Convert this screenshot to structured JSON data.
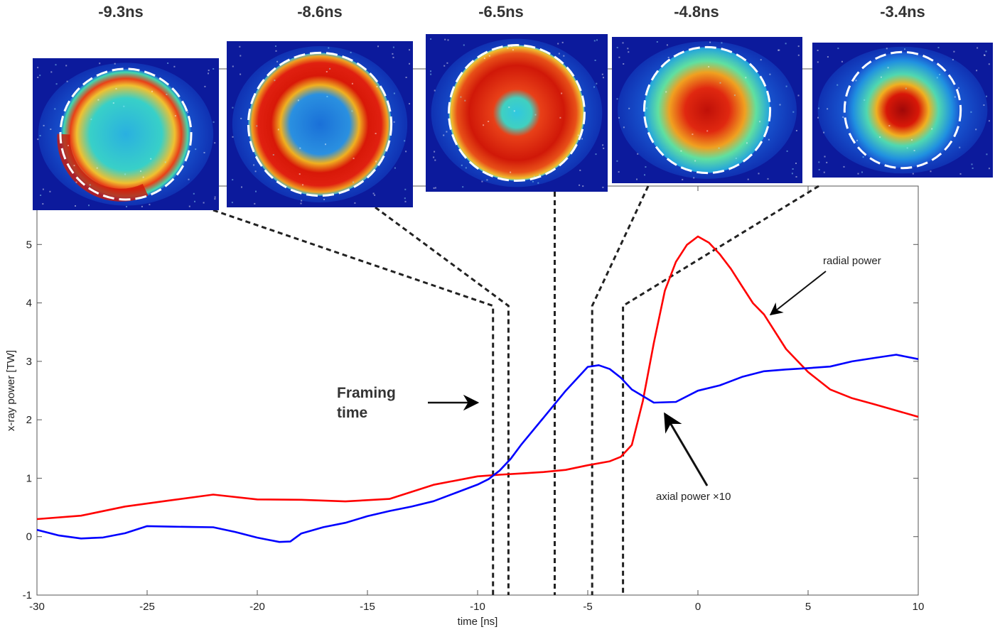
{
  "chart_data": {
    "type": "line",
    "xlabel": "time [ns]",
    "ylabel": "x-ray power [TW]",
    "xlim": [
      -30,
      10
    ],
    "ylim": [
      -1,
      6
    ],
    "xticks": [
      -30,
      -25,
      -20,
      -15,
      -10,
      -5,
      0,
      5,
      10
    ],
    "yticks": [
      -1,
      0,
      1,
      2,
      3,
      4,
      5
    ],
    "xtick_labels": [
      "-30",
      "-25",
      "-20",
      "-15",
      "-10",
      "-5",
      "0",
      "5",
      "10"
    ],
    "ytick_labels": [
      "-1",
      "0",
      "1",
      "2",
      "3",
      "4",
      "5"
    ],
    "grid": false,
    "colors": {
      "radial": "#ff0000",
      "axial": "#0000ff",
      "frame_line": "#222222"
    },
    "series": [
      {
        "name": "radial power",
        "x": [
          -30,
          -28,
          -26,
          -24,
          -22,
          -20,
          -18,
          -16,
          -14,
          -12,
          -10,
          -9,
          -8,
          -7,
          -6,
          -5,
          -4,
          -3.5,
          -3,
          -2.5,
          -2,
          -1.5,
          -1,
          -0.5,
          0,
          0.5,
          1,
          1.5,
          2,
          2.5,
          3,
          4,
          5,
          6,
          7,
          8,
          9,
          10
        ],
        "values": [
          0.3,
          0.35,
          0.5,
          0.6,
          0.7,
          0.62,
          0.62,
          0.6,
          0.65,
          0.9,
          1.05,
          1.08,
          1.1,
          1.12,
          1.15,
          1.22,
          1.28,
          1.35,
          1.55,
          2.3,
          3.3,
          4.2,
          4.7,
          5.0,
          5.15,
          5.05,
          4.85,
          4.6,
          4.3,
          4.0,
          3.8,
          3.2,
          2.8,
          2.5,
          2.35,
          2.25,
          2.15,
          2.05
        ]
      },
      {
        "name": "axial power ×10",
        "x": [
          -30,
          -29,
          -28,
          -27,
          -26,
          -25,
          -24,
          -23,
          -22,
          -21,
          -20,
          -19,
          -18.5,
          -18,
          -17,
          -16,
          -15,
          -14,
          -13,
          -12,
          -11,
          -10,
          -9.5,
          -9,
          -8.5,
          -8,
          -7,
          -6,
          -5,
          -4.5,
          -4,
          -3.5,
          -3,
          -2,
          -1,
          0,
          1,
          2,
          3,
          4,
          5,
          6,
          7,
          8,
          9,
          10
        ],
        "values": [
          0.1,
          0.0,
          -0.05,
          -0.03,
          0.05,
          0.18,
          0.18,
          0.18,
          0.18,
          0.1,
          0.0,
          -0.08,
          -0.08,
          0.05,
          0.15,
          0.22,
          0.33,
          0.42,
          0.5,
          0.6,
          0.75,
          0.9,
          1.0,
          1.15,
          1.35,
          1.6,
          2.05,
          2.5,
          2.9,
          2.92,
          2.85,
          2.7,
          2.5,
          2.28,
          2.3,
          2.5,
          2.6,
          2.75,
          2.85,
          2.88,
          2.9,
          2.92,
          3.0,
          3.05,
          3.1,
          3.02
        ]
      }
    ],
    "annotations": [
      {
        "text": "radial power",
        "x": 3.5,
        "y": 4.7,
        "arrow_to_x": 3.3,
        "arrow_to_y": 3.8
      },
      {
        "text": "axial power ×10",
        "x": 1.5,
        "y": 0.7,
        "arrow_to_x": -1.5,
        "arrow_to_y": 2.1
      },
      {
        "text": "Framing time",
        "x": -16,
        "y": 2.3
      }
    ],
    "frames": [
      {
        "label": "-9.3ns",
        "time": -9.3,
        "pattern": "ring_partial"
      },
      {
        "label": "-8.6ns",
        "time": -8.6,
        "pattern": "ring"
      },
      {
        "label": "-6.5ns",
        "time": -6.5,
        "pattern": "thick_ring"
      },
      {
        "label": "-4.8ns",
        "time": -4.8,
        "pattern": "blob"
      },
      {
        "label": "-3.4ns",
        "time": -3.4,
        "pattern": "core"
      }
    ],
    "frame_line_top_y": 3.95
  }
}
